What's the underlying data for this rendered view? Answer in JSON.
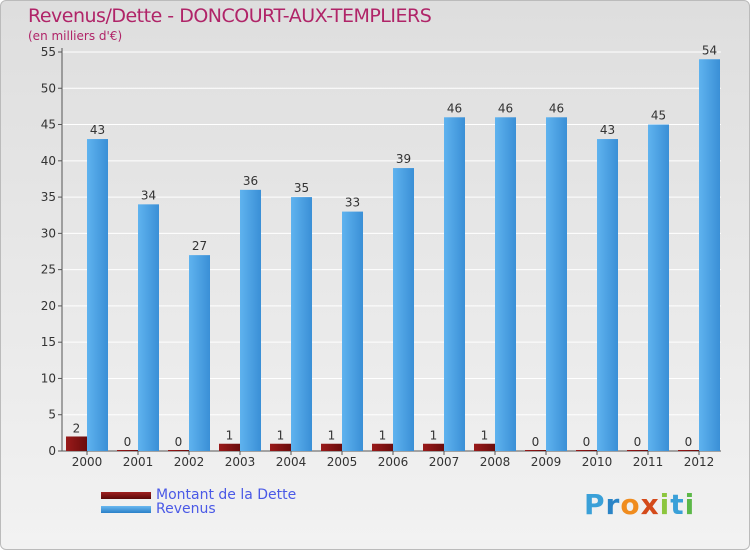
{
  "header": {
    "title": "Revenus/Dette - DONCOURT-AUX-TEMPLIERS",
    "subtitle": "(en milliers d'€)"
  },
  "legend": {
    "items": [
      {
        "label": "Montant de la Dette",
        "color": "#7a0f10"
      },
      {
        "label": "Revenus",
        "color": "#4aa3e6"
      }
    ]
  },
  "logo": {
    "letters": [
      "P",
      "r",
      "o",
      "x",
      "i",
      "t",
      "i"
    ],
    "colors": [
      "#3aa0d8",
      "#2a84c6",
      "#f08c1e",
      "#d44a1a",
      "#8cc63e",
      "#3aa0d8",
      "#5cb848"
    ]
  },
  "chart_data": {
    "type": "bar",
    "title": "Revenus/Dette - DONCOURT-AUX-TEMPLIERS",
    "ylabel": "(en milliers d'€)",
    "xlabel": "",
    "ylim": [
      0,
      55
    ],
    "yticks": [
      0,
      5,
      10,
      15,
      20,
      25,
      30,
      35,
      40,
      45,
      50,
      55
    ],
    "categories": [
      "2000",
      "2001",
      "2002",
      "2003",
      "2004",
      "2005",
      "2006",
      "2007",
      "2008",
      "2009",
      "2010",
      "2011",
      "2012"
    ],
    "series": [
      {
        "name": "Montant de la Dette",
        "color": "#7a0f10",
        "values": [
          2,
          0,
          0,
          1,
          1,
          1,
          1,
          1,
          1,
          0,
          0,
          0,
          0
        ]
      },
      {
        "name": "Revenus",
        "color": "#4aa3e6",
        "values": [
          43,
          34,
          27,
          36,
          35,
          33,
          39,
          46,
          46,
          46,
          43,
          45,
          54
        ]
      }
    ]
  }
}
